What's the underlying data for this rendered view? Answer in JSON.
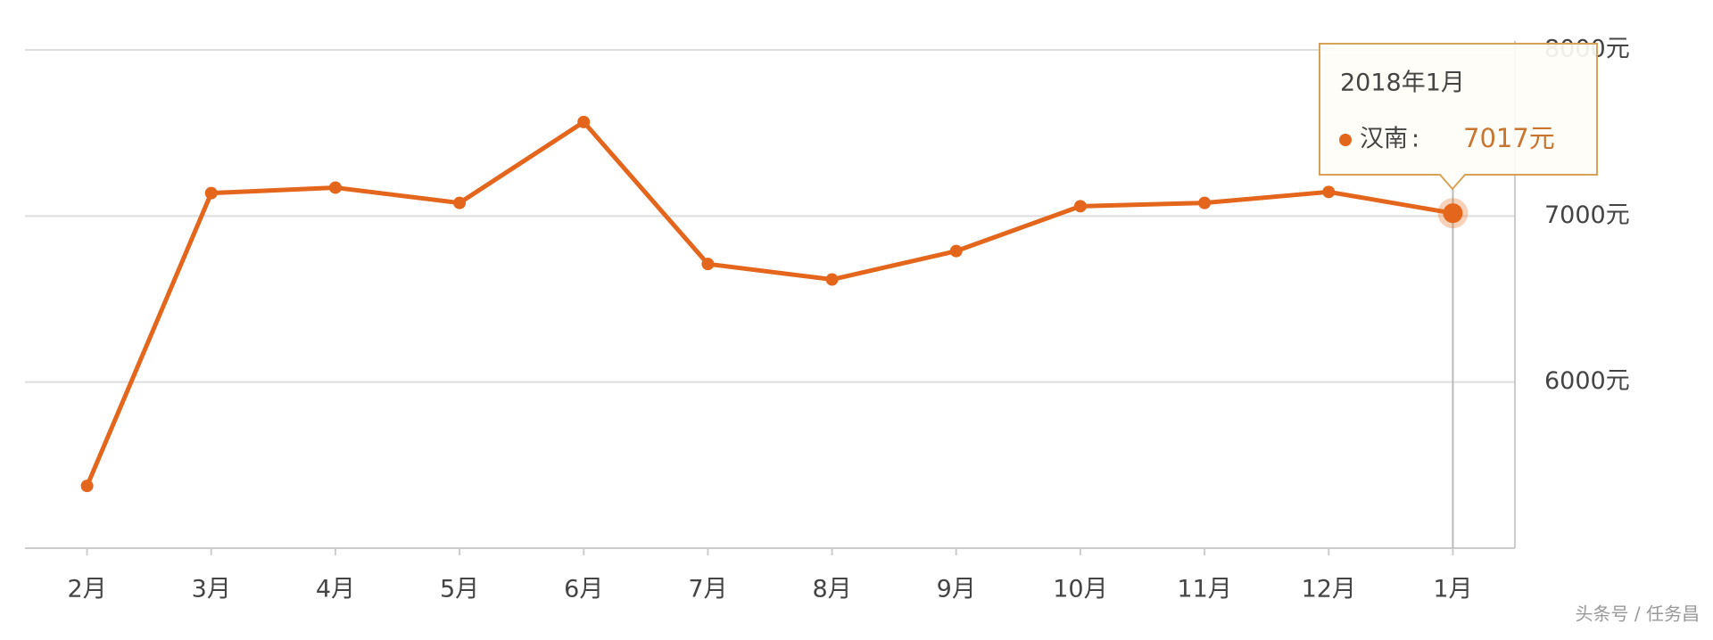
{
  "chart_data": {
    "type": "line",
    "categories": [
      "2月",
      "3月",
      "4月",
      "5月",
      "6月",
      "7月",
      "8月",
      "9月",
      "10月",
      "11月",
      "12月",
      "1月"
    ],
    "series": [
      {
        "name": "汉南",
        "color": "#e4661c",
        "values": [
          5375,
          7138,
          7171,
          7079,
          7566,
          6711,
          6618,
          6789,
          7059,
          7079,
          7145,
          7017
        ],
        "value_labels": [
          null,
          null,
          null,
          null,
          null,
          null,
          null,
          null,
          null,
          null,
          null,
          "7017元"
        ]
      }
    ],
    "ylim": [
      5000,
      8000
    ],
    "yticks": [
      {
        "value": 6000,
        "label": "6000元"
      },
      {
        "value": 7000,
        "label": "7000元"
      },
      {
        "value": 8000,
        "label": "8000元"
      }
    ],
    "grid": true,
    "tooltip": {
      "title": "2018年1月",
      "separator": ":"
    },
    "watermark": "头条号 / 任务昌"
  }
}
